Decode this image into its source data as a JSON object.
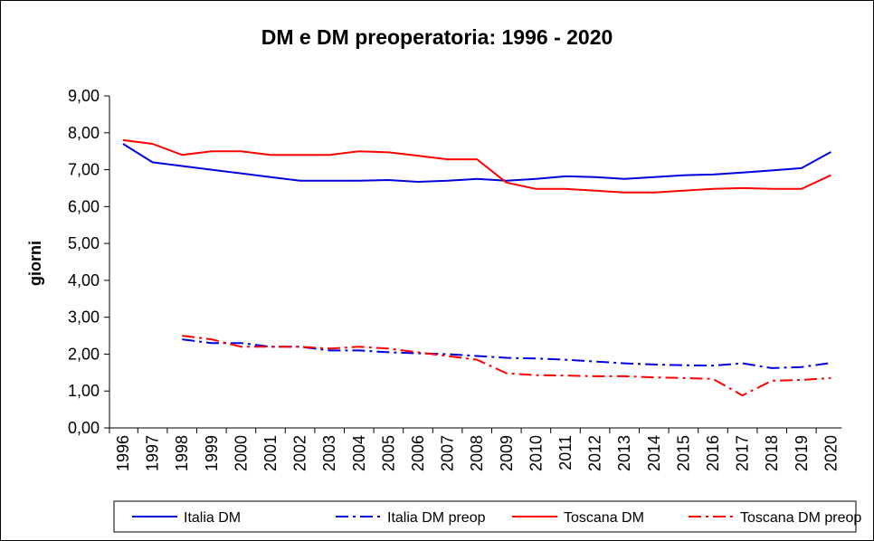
{
  "chart_data": {
    "type": "line",
    "title": "DM e DM preoperatoria: 1996 - 2020",
    "ylabel": "giorni",
    "xlabel": "",
    "ylim": [
      0,
      9
    ],
    "yticks": [
      "0,00",
      "1,00",
      "2,00",
      "3,00",
      "4,00",
      "5,00",
      "6,00",
      "7,00",
      "8,00",
      "9,00"
    ],
    "categories": [
      "1996",
      "1997",
      "1998",
      "1999",
      "2000",
      "2001",
      "2002",
      "2003",
      "2004",
      "2005",
      "2006",
      "2007",
      "2008",
      "2009",
      "2010",
      "2011",
      "2012",
      "2013",
      "2014",
      "2015",
      "2016",
      "2017",
      "2018",
      "2019",
      "2020"
    ],
    "grid": false,
    "legend_position": "bottom",
    "series": [
      {
        "name": "Italia DM",
        "color": "#0000dd",
        "line_style": "solid",
        "values": [
          7.7,
          7.2,
          7.1,
          7.0,
          6.9,
          6.8,
          6.7,
          6.7,
          6.7,
          6.72,
          6.67,
          6.7,
          6.75,
          6.7,
          6.75,
          6.82,
          6.8,
          6.75,
          6.8,
          6.85,
          6.87,
          6.92,
          6.98,
          7.04,
          7.48
        ]
      },
      {
        "name": "Italia DM preop",
        "color": "#0000dd",
        "line_style": "dash-dot",
        "values": [
          null,
          null,
          2.4,
          2.3,
          2.3,
          2.2,
          2.2,
          2.1,
          2.1,
          2.05,
          2.02,
          2.0,
          1.95,
          1.9,
          1.88,
          1.85,
          1.8,
          1.75,
          1.72,
          1.7,
          1.69,
          1.75,
          1.62,
          1.65,
          1.76
        ]
      },
      {
        "name": "Toscana DM",
        "color": "#ff0000",
        "line_style": "solid",
        "values": [
          7.8,
          7.7,
          7.4,
          7.5,
          7.5,
          7.4,
          7.4,
          7.4,
          7.5,
          7.47,
          7.38,
          7.28,
          7.28,
          6.65,
          6.48,
          6.48,
          6.43,
          6.38,
          6.38,
          6.43,
          6.48,
          6.5,
          6.48,
          6.48,
          6.85
        ]
      },
      {
        "name": "Toscana DM preop",
        "color": "#ff0000",
        "line_style": "dash-dot",
        "values": [
          null,
          null,
          2.5,
          2.4,
          2.2,
          2.2,
          2.2,
          2.15,
          2.2,
          2.15,
          2.05,
          1.95,
          1.85,
          1.48,
          1.43,
          1.42,
          1.4,
          1.4,
          1.37,
          1.35,
          1.33,
          0.88,
          1.28,
          1.3,
          1.35
        ]
      }
    ]
  }
}
